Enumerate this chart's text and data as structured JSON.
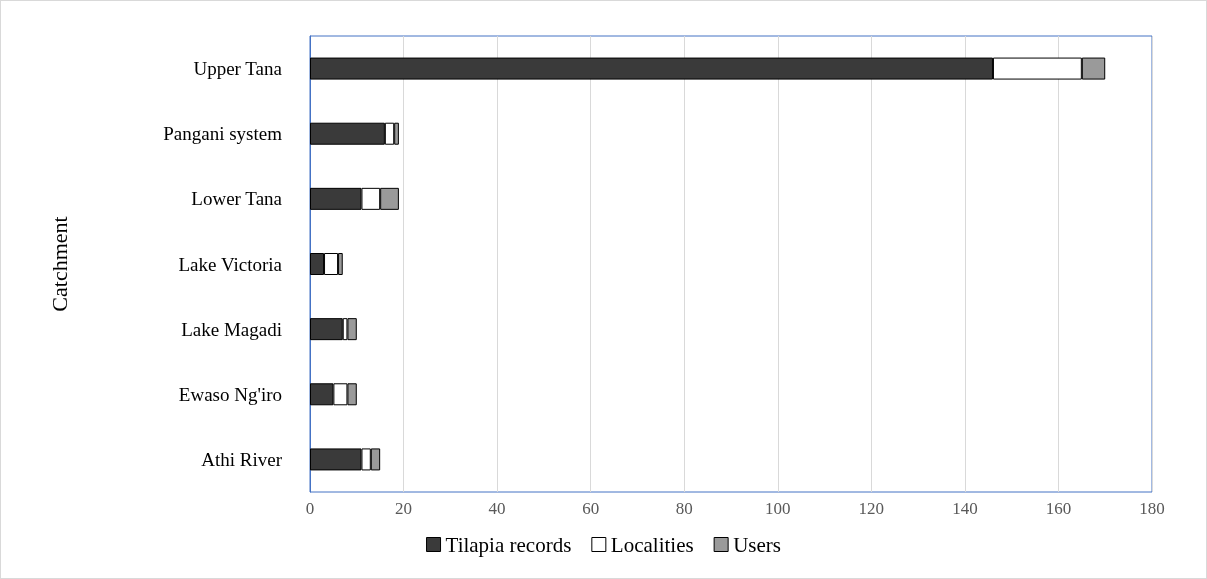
{
  "chart_data": {
    "type": "bar",
    "orientation": "horizontal",
    "stacked": true,
    "ylabel": "Catchment",
    "categories": [
      "Upper Tana",
      "Pangani system",
      "Lower Tana",
      "Lake Victoria",
      "Lake Magadi",
      "Ewaso Ng'iro",
      "Athi River"
    ],
    "series": [
      {
        "name": "Tilapia records",
        "color": "#3a3a3a",
        "values": [
          146,
          16,
          11,
          3,
          7,
          5,
          11
        ]
      },
      {
        "name": "Localities",
        "color": "#ffffff",
        "values": [
          19,
          2,
          4,
          3,
          1,
          3,
          2
        ]
      },
      {
        "name": "Users",
        "color": "#9a9a9a",
        "values": [
          5,
          1,
          4,
          1,
          2,
          2,
          2
        ]
      }
    ],
    "xlim": [
      0,
      180
    ],
    "xticks": [
      0,
      20,
      40,
      60,
      80,
      100,
      120,
      140,
      160,
      180
    ],
    "grid": "x",
    "legend": "bottom"
  }
}
